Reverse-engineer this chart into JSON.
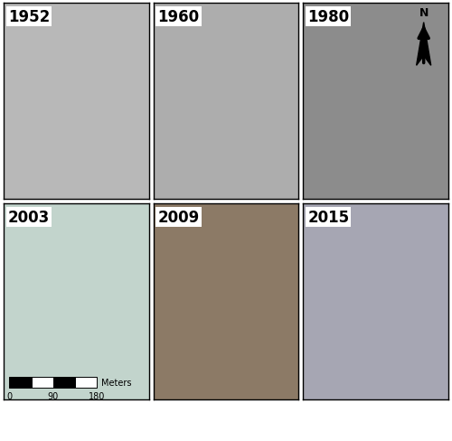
{
  "years": [
    "1952",
    "1960",
    "1980",
    "2003",
    "2009",
    "2015"
  ],
  "grid_rows": 2,
  "grid_cols": 3,
  "figure_width": 5.0,
  "figure_height": 4.89,
  "dpi": 100,
  "panel_avg_colors": {
    "1952": [
      0.72,
      0.72,
      0.72
    ],
    "1960": [
      0.68,
      0.68,
      0.68
    ],
    "1980": [
      0.55,
      0.55,
      0.55
    ],
    "2003": [
      0.76,
      0.83,
      0.8
    ],
    "2009": [
      0.55,
      0.48,
      0.4
    ],
    "2015": [
      0.65,
      0.65,
      0.7
    ]
  },
  "label_fontsize": 12,
  "label_fontweight": "bold",
  "label_color": "black",
  "border_color": "black",
  "border_linewidth": 1.0,
  "scalebar_label": "Meters",
  "scalebar_ticks": [
    "0",
    "90",
    "180"
  ],
  "north_text": "N"
}
